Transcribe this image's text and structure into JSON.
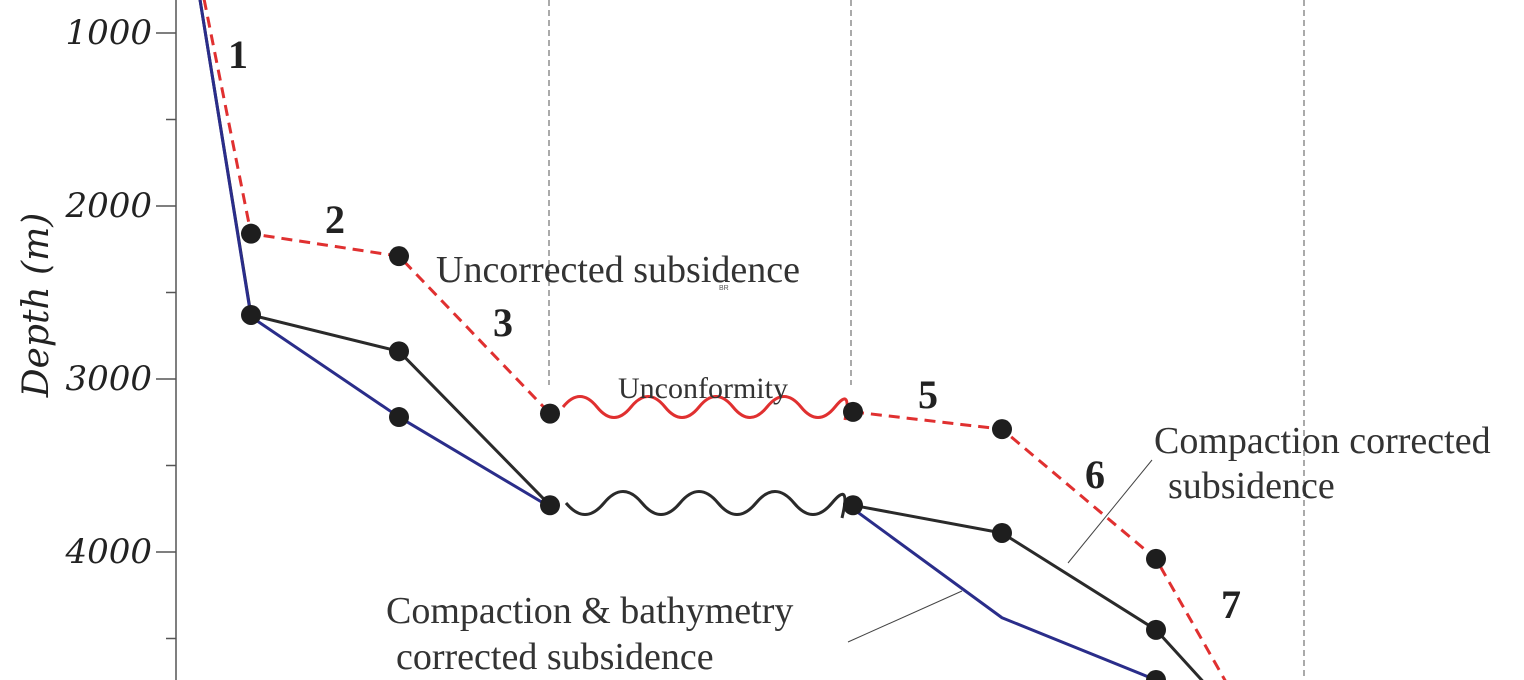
{
  "chart_data": {
    "type": "line",
    "ylabel": "Depth (m)",
    "y_ticks": [
      1000,
      2000,
      3000,
      4000
    ],
    "y_axis_inverted": true,
    "grid": false,
    "series": [
      {
        "key": "uncorrected",
        "name": "Uncorrected subsidence",
        "color": "#e03030",
        "dashed": true,
        "points": [
          {
            "x": 0.0,
            "y": 600
          },
          {
            "x": 1.0,
            "y": 2160
          },
          {
            "x": 2.0,
            "y": 2290
          },
          {
            "x": 3.0,
            "y": 3200
          },
          {
            "x": 5.0,
            "y": 3190
          },
          {
            "x": 6.0,
            "y": 3290
          },
          {
            "x": 7.0,
            "y": 4040
          },
          {
            "x": 7.7,
            "y": 4780
          }
        ]
      },
      {
        "key": "compaction",
        "name": "Compaction corrected subsidence",
        "color": "#2a2a2a",
        "dashed": false,
        "points": [
          {
            "x": 0.0,
            "y": 700
          },
          {
            "x": 1.0,
            "y": 2630
          },
          {
            "x": 2.0,
            "y": 2840
          },
          {
            "x": 3.0,
            "y": 3730
          },
          {
            "x": 5.0,
            "y": 3730
          },
          {
            "x": 6.0,
            "y": 3890
          },
          {
            "x": 7.0,
            "y": 4450
          },
          {
            "x": 7.5,
            "y": 4780
          }
        ]
      },
      {
        "key": "bathymetry",
        "name": "Compaction & bathymetry corrected subsidence",
        "color": "#2a2d8a",
        "dashed": false,
        "points": [
          {
            "x": 0.0,
            "y": 700
          },
          {
            "x": 1.0,
            "y": 2640
          },
          {
            "x": 2.0,
            "y": 3220
          },
          {
            "x": 3.0,
            "y": 3740
          },
          {
            "x": 5.0,
            "y": 3750
          },
          {
            "x": 6.0,
            "y": 4380
          },
          {
            "x": 7.0,
            "y": 4740
          }
        ]
      }
    ],
    "markers": [
      {
        "series": "uncorrected",
        "points": [
          1,
          2,
          3,
          4,
          5,
          6
        ]
      },
      {
        "series": "compaction",
        "points": [
          1,
          2,
          3,
          4,
          5,
          6
        ]
      },
      {
        "series": "bathymetry",
        "points": [
          2,
          6
        ]
      }
    ],
    "segment_labels": [
      "1",
      "2",
      "3",
      "5",
      "6",
      "7"
    ],
    "annotations": {
      "uncorrected": "Uncorrected subsidence",
      "unconformity": "Unconformity",
      "compaction_line1": "Compaction corrected",
      "compaction_line2": "subsidence",
      "bathymetry_line1": "Compaction & bathymetry",
      "bathymetry_line2": "corrected subsidence",
      "tiny_mark": "BR"
    }
  }
}
